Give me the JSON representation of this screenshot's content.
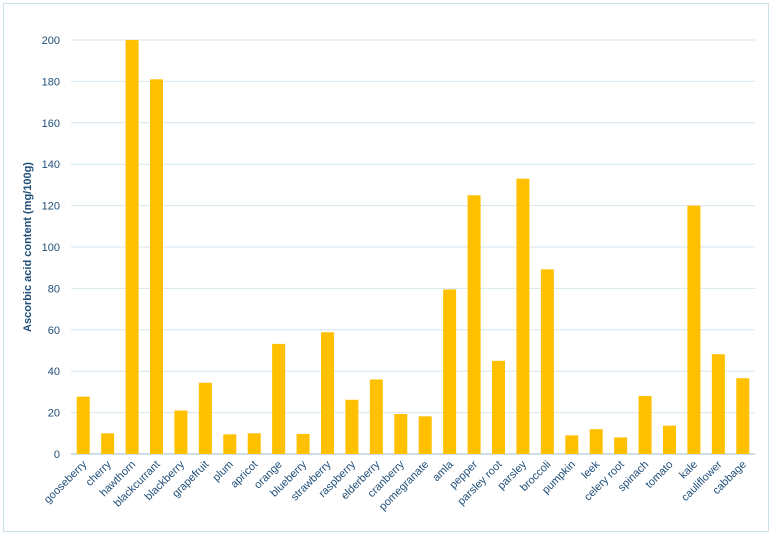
{
  "chart_data": {
    "type": "bar",
    "title": "",
    "xlabel": "",
    "ylabel": "Ascorbic acid content (mg/100g)",
    "ylim": [
      0,
      200
    ],
    "yticks": [
      0,
      20,
      40,
      60,
      80,
      100,
      120,
      140,
      160,
      180,
      200
    ],
    "grid": "horizontal",
    "legend": "none",
    "bar_color": "#ffc000",
    "categories": [
      "gooseberry",
      "cherry",
      "hawthorn",
      "blackcurrant",
      "blackberry",
      "grapefruit",
      "plum",
      "apricot",
      "orange",
      "blueberry",
      "strawberry",
      "raspberry",
      "elderberry",
      "cranberry",
      "pomegranate",
      "amla",
      "pepper",
      "parsley root",
      "parsley",
      "broccoli",
      "pumpkin",
      "leek",
      "celery root",
      "spinach",
      "tomato",
      "kale",
      "cauliflower",
      "cabbage"
    ],
    "values": [
      27.7,
      10,
      200,
      181,
      21,
      34.4,
      9.5,
      10,
      53.2,
      9.7,
      58.8,
      26.2,
      36,
      19.3,
      18.2,
      79.5,
      125,
      45,
      133,
      89.2,
      9,
      12,
      8,
      28,
      13.7,
      120,
      48.2,
      36.6
    ]
  }
}
